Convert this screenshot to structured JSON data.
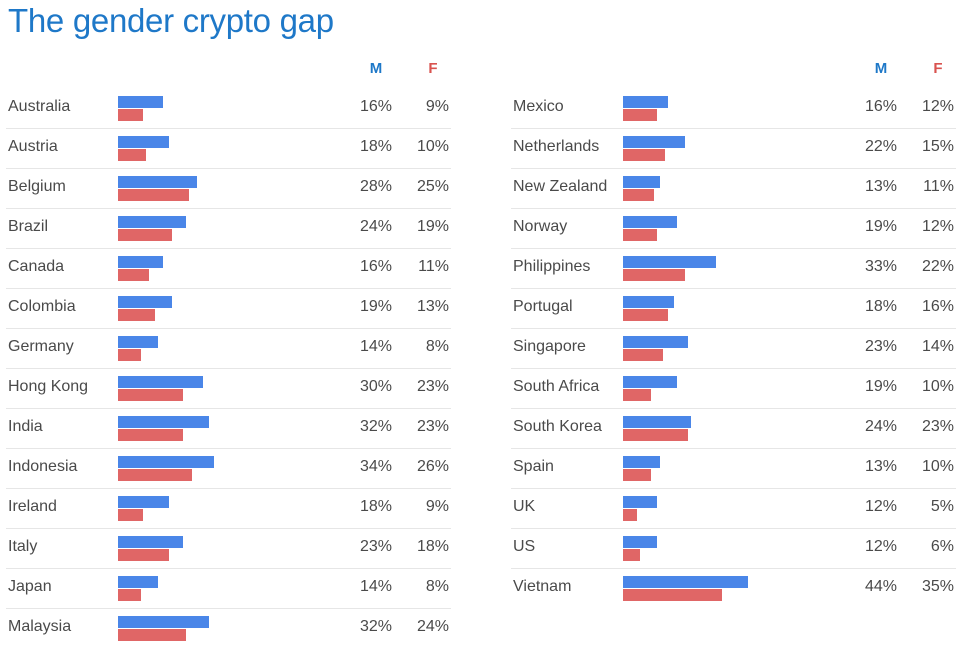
{
  "title": "The gender crypto gap",
  "chart_data": {
    "type": "bar",
    "orientation": "horizontal",
    "title": "The gender crypto gap",
    "unit": "%",
    "series_labels": {
      "m": "M",
      "f": "F"
    },
    "colors": {
      "m": "#4a86e8",
      "f": "#e06666",
      "m_header": "#1e78c8",
      "f_header": "#d9534f",
      "title": "#1e78c8"
    },
    "xmax": 44,
    "panels": [
      {
        "rows": [
          {
            "country": "Australia",
            "m": 16,
            "f": 9
          },
          {
            "country": "Austria",
            "m": 18,
            "f": 10
          },
          {
            "country": "Belgium",
            "m": 28,
            "f": 25
          },
          {
            "country": "Brazil",
            "m": 24,
            "f": 19
          },
          {
            "country": "Canada",
            "m": 16,
            "f": 11
          },
          {
            "country": "Colombia",
            "m": 19,
            "f": 13
          },
          {
            "country": "Germany",
            "m": 14,
            "f": 8
          },
          {
            "country": "Hong Kong",
            "m": 30,
            "f": 23
          },
          {
            "country": "India",
            "m": 32,
            "f": 23
          },
          {
            "country": "Indonesia",
            "m": 34,
            "f": 26
          },
          {
            "country": "Ireland",
            "m": 18,
            "f": 9
          },
          {
            "country": "Italy",
            "m": 23,
            "f": 18
          },
          {
            "country": "Japan",
            "m": 14,
            "f": 8
          },
          {
            "country": "Malaysia",
            "m": 32,
            "f": 24
          }
        ]
      },
      {
        "rows": [
          {
            "country": "Mexico",
            "m": 16,
            "f": 12
          },
          {
            "country": "Netherlands",
            "m": 22,
            "f": 15
          },
          {
            "country": "New Zealand",
            "m": 13,
            "f": 11
          },
          {
            "country": "Norway",
            "m": 19,
            "f": 12
          },
          {
            "country": "Philippines",
            "m": 33,
            "f": 22
          },
          {
            "country": "Portugal",
            "m": 18,
            "f": 16
          },
          {
            "country": "Singapore",
            "m": 23,
            "f": 14
          },
          {
            "country": "South Africa",
            "m": 19,
            "f": 10
          },
          {
            "country": "South Korea",
            "m": 24,
            "f": 23
          },
          {
            "country": "Spain",
            "m": 13,
            "f": 10
          },
          {
            "country": "UK",
            "m": 12,
            "f": 5
          },
          {
            "country": "US",
            "m": 12,
            "f": 6
          },
          {
            "country": "Vietnam",
            "m": 44,
            "f": 35
          }
        ]
      }
    ]
  }
}
